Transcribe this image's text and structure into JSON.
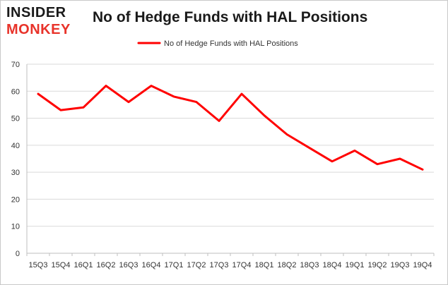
{
  "logo": {
    "top": "INSIDER",
    "bottom": "MONKEY"
  },
  "chart_data": {
    "type": "line",
    "title": "No of Hedge Funds with HAL Positions",
    "categories": [
      "15Q3",
      "15Q4",
      "16Q1",
      "16Q2",
      "16Q3",
      "16Q4",
      "17Q1",
      "17Q2",
      "17Q3",
      "17Q4",
      "18Q1",
      "18Q2",
      "18Q3",
      "18Q4",
      "19Q1",
      "19Q2",
      "19Q3",
      "19Q4"
    ],
    "series": [
      {
        "name": "No of Hedge Funds with HAL Positions",
        "values": [
          59,
          53,
          54,
          62,
          56,
          62,
          58,
          56,
          49,
          59,
          51,
          44,
          39,
          34,
          38,
          33,
          35,
          31
        ],
        "color": "#ff0000"
      }
    ],
    "ylim": [
      0,
      70
    ],
    "yticks": [
      0,
      10,
      20,
      30,
      40,
      50,
      60,
      70
    ],
    "grid": true,
    "legend": "top-center"
  }
}
